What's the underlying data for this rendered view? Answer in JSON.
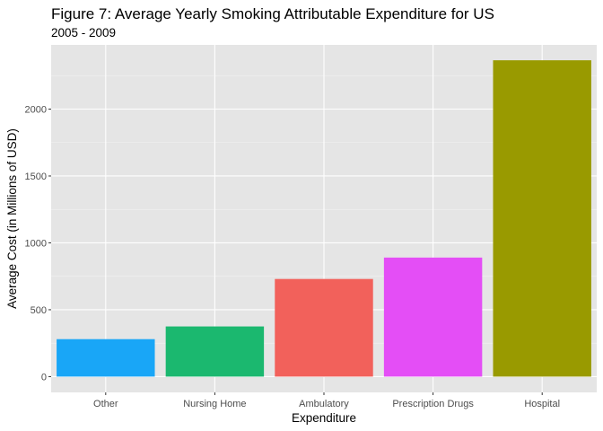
{
  "chart_data": {
    "type": "bar",
    "title": "Figure 7: Average Yearly Smoking Attributable Expenditure for US",
    "subtitle": "2005 - 2009",
    "xlabel": "Expenditure",
    "ylabel": "Average Cost (in Millions of USD)",
    "categories": [
      "Other",
      "Nursing Home",
      "Ambulatory",
      "Prescription Drugs",
      "Hospital"
    ],
    "values": [
      280,
      375,
      730,
      890,
      2365
    ],
    "colors": [
      "#19a6f7",
      "#1bb86f",
      "#f2615b",
      "#e44ef6",
      "#999a00"
    ],
    "ylim": [
      -118,
      2480
    ],
    "yticks": [
      0,
      500,
      1000,
      1500,
      2000
    ],
    "grid": true,
    "legend": "none",
    "panel_background": "#e5e5e5"
  }
}
